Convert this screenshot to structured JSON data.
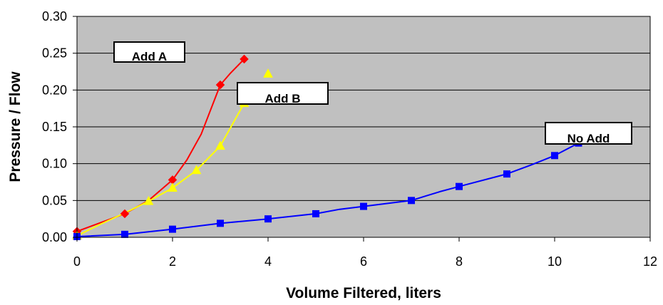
{
  "chart_data": {
    "type": "line",
    "title": "",
    "xlabel": "Volume Filtered, liters",
    "ylabel": "Pressure / Flow",
    "xlim": [
      0,
      12
    ],
    "ylim": [
      0,
      0.3
    ],
    "x_ticks": [
      "0",
      "2",
      "4",
      "6",
      "8",
      "10",
      "12"
    ],
    "y_ticks": [
      "0.00",
      "0.05",
      "0.10",
      "0.15",
      "0.20",
      "0.25",
      "0.30"
    ],
    "grid": "horizontal",
    "legend": "none",
    "plot_background": "#c0c0c0",
    "series": [
      {
        "label": "Add A",
        "color": "#ff0000",
        "marker": "diamond",
        "points": [
          [
            0,
            0.008
          ],
          [
            1,
            0.032
          ],
          [
            2,
            0.078
          ],
          [
            3,
            0.207
          ],
          [
            3.5,
            0.242
          ]
        ],
        "curve": [
          [
            0,
            0.008
          ],
          [
            0.5,
            0.02
          ],
          [
            1,
            0.032
          ],
          [
            1.5,
            0.05
          ],
          [
            2,
            0.078
          ],
          [
            2.3,
            0.105
          ],
          [
            2.6,
            0.14
          ],
          [
            3,
            0.207
          ],
          [
            3.2,
            0.222
          ],
          [
            3.5,
            0.242
          ]
        ]
      },
      {
        "label": "Add B",
        "color": "#ffff00",
        "marker": "triangle",
        "points": [
          [
            0,
            0.002
          ],
          [
            1.5,
            0.049
          ],
          [
            2,
            0.067
          ],
          [
            2.5,
            0.091
          ],
          [
            3,
            0.124
          ],
          [
            3.5,
            0.182
          ],
          [
            4,
            0.222
          ]
        ],
        "curve": [
          [
            0,
            0.002
          ],
          [
            0.5,
            0.018
          ],
          [
            1,
            0.033
          ],
          [
            1.5,
            0.049
          ],
          [
            2,
            0.067
          ],
          [
            2.5,
            0.091
          ],
          [
            3,
            0.124
          ],
          [
            3.5,
            0.182
          ]
        ]
      },
      {
        "label": "No Add",
        "color": "#0000ff",
        "marker": "square",
        "points": [
          [
            0,
            0.001
          ],
          [
            1,
            0.004
          ],
          [
            2,
            0.011
          ],
          [
            3,
            0.019
          ],
          [
            4,
            0.025
          ],
          [
            5,
            0.032
          ],
          [
            6,
            0.042
          ],
          [
            7,
            0.05
          ],
          [
            8,
            0.069
          ],
          [
            9,
            0.086
          ],
          [
            10,
            0.111
          ],
          [
            10.5,
            0.128
          ]
        ],
        "curve": [
          [
            0,
            0.001
          ],
          [
            1,
            0.004
          ],
          [
            2,
            0.011
          ],
          [
            3,
            0.019
          ],
          [
            4,
            0.025
          ],
          [
            5,
            0.032
          ],
          [
            5.5,
            0.038
          ],
          [
            6,
            0.042
          ],
          [
            7,
            0.05
          ],
          [
            7.3,
            0.056
          ],
          [
            7.6,
            0.062
          ],
          [
            8,
            0.069
          ],
          [
            9,
            0.086
          ],
          [
            9.5,
            0.098
          ],
          [
            10,
            0.111
          ],
          [
            10.5,
            0.128
          ]
        ]
      }
    ]
  }
}
